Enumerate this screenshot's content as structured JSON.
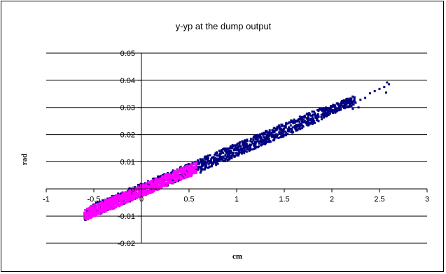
{
  "chart_data": {
    "type": "scatter",
    "title": "y-yp at the dump output",
    "xlabel": "cm",
    "ylabel": "rad",
    "xlim": [
      -1,
      3
    ],
    "ylim": [
      -0.02,
      0.05
    ],
    "x_ticks": [
      "-1",
      "-0.5",
      "0",
      "0.5",
      "1",
      "1.5",
      "2",
      "2.5",
      "3"
    ],
    "y_ticks": [
      "-0.02",
      "-0.01",
      "0",
      "0.01",
      "0.02",
      "0.03",
      "0.04",
      "0.05"
    ],
    "grid": "horizontal",
    "legend": "none",
    "series": [
      {
        "color": "#000080",
        "band": {
          "x_range": [
            -0.6,
            2.25
          ],
          "center_line": {
            "slope": 0.0148,
            "intercept": -0.0004
          },
          "half_width": 0.0024
        },
        "outliers": [
          [
            2.3,
            0.0328
          ],
          [
            2.35,
            0.0335
          ],
          [
            2.4,
            0.0352
          ],
          [
            2.45,
            0.036
          ],
          [
            2.5,
            0.0368
          ],
          [
            2.55,
            0.0375
          ],
          [
            2.58,
            0.0392
          ],
          [
            2.6,
            0.0385
          ],
          [
            2.57,
            0.0355
          ],
          [
            2.28,
            0.03
          ],
          [
            2.22,
            0.0295
          ],
          [
            0.62,
            0.006
          ]
        ]
      },
      {
        "color": "#ff00ff",
        "band": {
          "x_range": [
            -0.6,
            0.58
          ],
          "center_line": {
            "slope": 0.0148,
            "intercept": -0.0007
          },
          "half_width": 0.0022
        }
      }
    ]
  }
}
